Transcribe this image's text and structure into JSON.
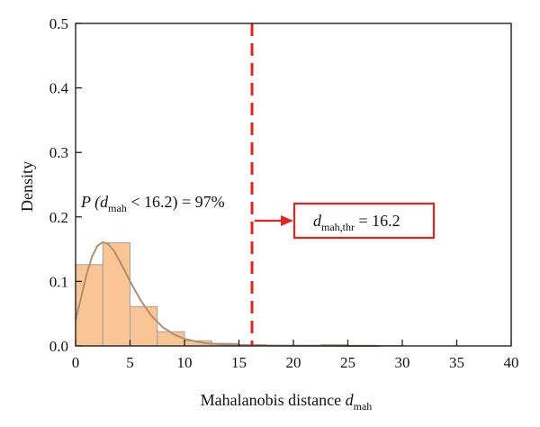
{
  "chart_data": {
    "type": "bar",
    "subtype": "histogram-with-density-curve",
    "xlabel": {
      "main": "Mahalanobis distance ",
      "var": "d",
      "sub": "mah"
    },
    "ylabel": "Density",
    "xlim": [
      0,
      40
    ],
    "ylim": [
      0,
      0.5
    ],
    "xticks": [
      "0",
      "5",
      "10",
      "15",
      "20",
      "25",
      "30",
      "35",
      "40"
    ],
    "yticks": [
      "0.0",
      "0.1",
      "0.2",
      "0.3",
      "0.4",
      "0.5"
    ],
    "grid": false,
    "bins": [
      {
        "x0": 0.0,
        "x1": 2.5,
        "density": 0.126
      },
      {
        "x0": 2.5,
        "x1": 5.0,
        "density": 0.16
      },
      {
        "x0": 5.0,
        "x1": 7.5,
        "density": 0.061
      },
      {
        "x0": 7.5,
        "x1": 10.0,
        "density": 0.022
      },
      {
        "x0": 10.0,
        "x1": 12.5,
        "density": 0.008
      },
      {
        "x0": 12.5,
        "x1": 15.0,
        "density": 0.004
      },
      {
        "x0": 15.0,
        "x1": 17.5,
        "density": 0.002
      },
      {
        "x0": 17.5,
        "x1": 20.0,
        "density": 0.001
      },
      {
        "x0": 20.0,
        "x1": 22.5,
        "density": 0.001
      },
      {
        "x0": 22.5,
        "x1": 25.0,
        "density": 0.002
      },
      {
        "x0": 25.0,
        "x1": 27.5,
        "density": 0.001
      },
      {
        "x0": 27.5,
        "x1": 30.0,
        "density": 0.0005
      }
    ],
    "density_curve": {
      "x": [
        0,
        0.5,
        1,
        1.5,
        2,
        2.5,
        3,
        3.5,
        4,
        4.5,
        5,
        6,
        7,
        8,
        9,
        10,
        11,
        12,
        13,
        14,
        16,
        18,
        20,
        24,
        28
      ],
      "y": [
        0.04,
        0.075,
        0.11,
        0.138,
        0.155,
        0.161,
        0.158,
        0.148,
        0.133,
        0.117,
        0.1,
        0.07,
        0.046,
        0.029,
        0.018,
        0.011,
        0.007,
        0.004,
        0.003,
        0.002,
        0.001,
        0.0006,
        0.0003,
        0.0001,
        0.0
      ]
    },
    "threshold": 16.2,
    "annotations": {
      "probability": {
        "prefix": "P (",
        "var": "d",
        "sub": "mah",
        "suffix": " < 16.2) = 97%"
      },
      "threshold_box": {
        "var": "d",
        "sub": "mah,thr",
        "suffix": " = 16.2"
      }
    },
    "colors": {
      "bar_fill": "#f9c594",
      "bar_stroke": "#a0a0a0",
      "curve": "#b28f6f",
      "threshold": "#e52421",
      "axis": "#111111"
    }
  }
}
